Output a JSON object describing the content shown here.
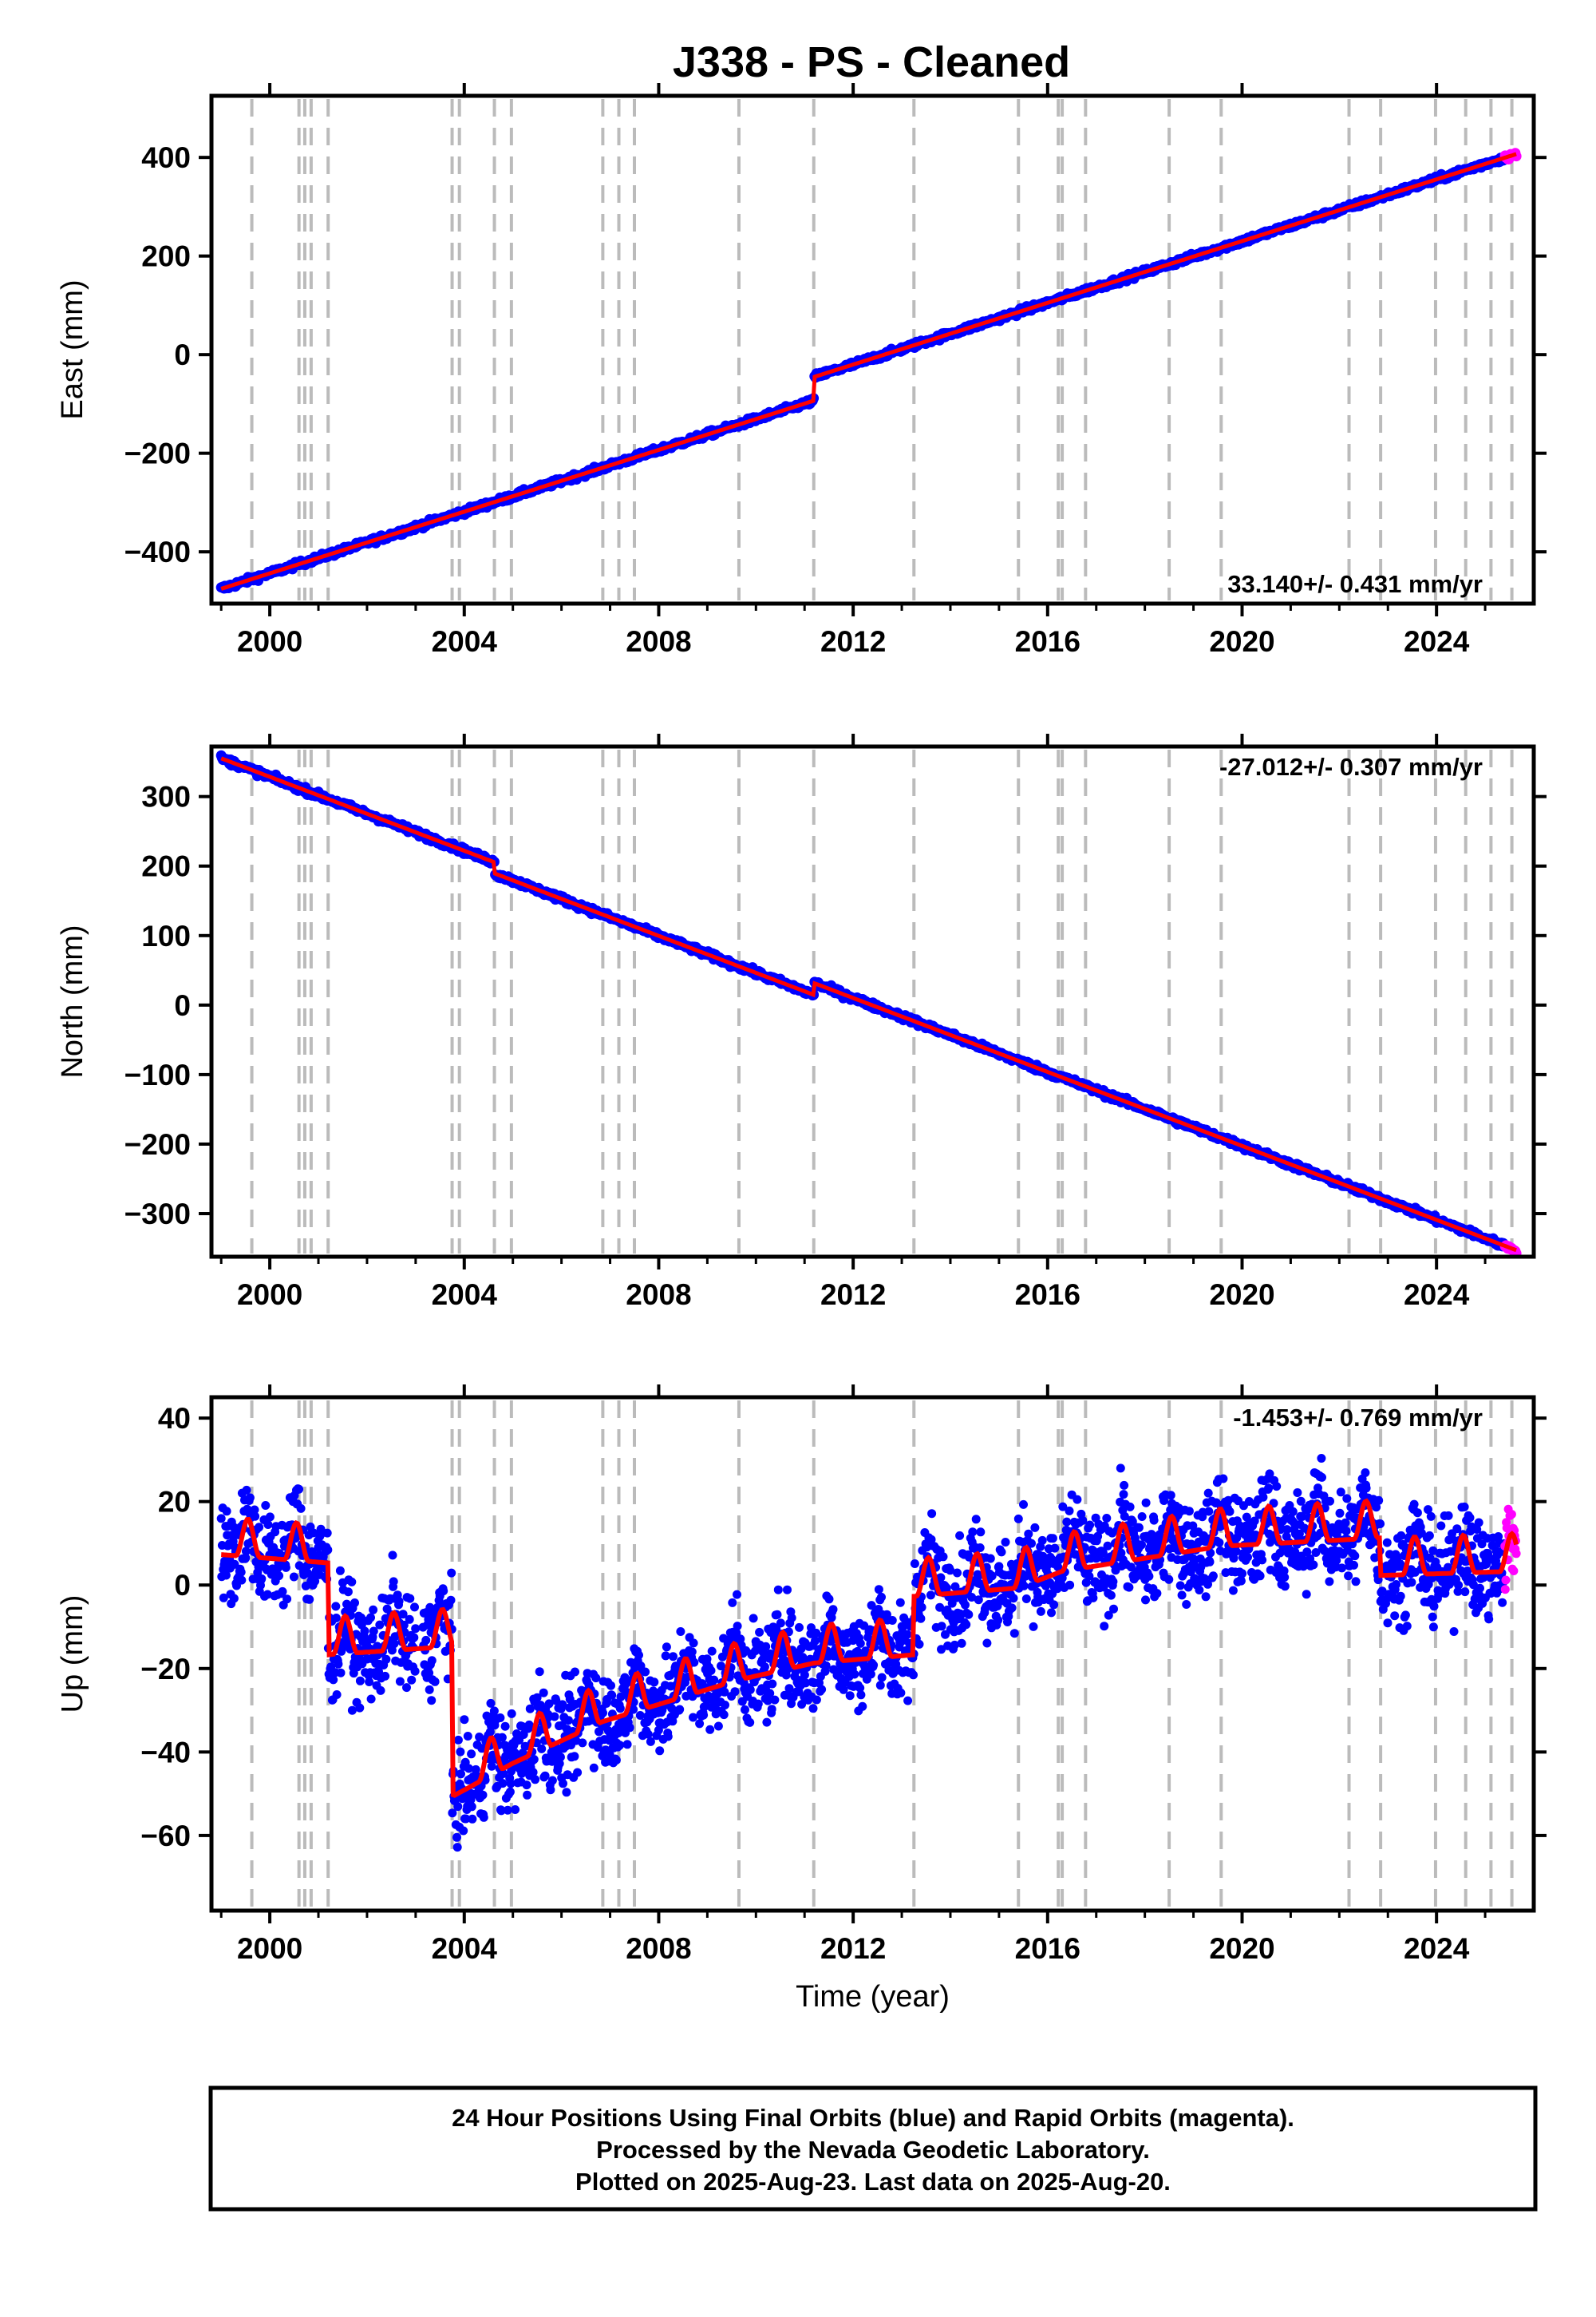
{
  "title": "J338  - PS - Cleaned",
  "footer": {
    "lines": [
      "24 Hour Positions Using Final Orbits (blue) and Rapid Orbits (magenta).",
      "Processed by the Nevada Geodetic Laboratory.",
      "Plotted on 2025-Aug-23. Last data on 2025-Aug-20."
    ]
  },
  "colors": {
    "final_orbits": "#0000ff",
    "rapid_orbits": "#ff00ff",
    "model": "#ff0000",
    "events": "#bbbbbb"
  },
  "chart_data": [
    {
      "type": "scatter",
      "ylabel": "East (mm)",
      "xlabel": "",
      "xlim": [
        1998.8,
        2026.0
      ],
      "ylim": [
        -505,
        525
      ],
      "x_ticks": [
        2000,
        2004,
        2008,
        2012,
        2016,
        2020,
        2024
      ],
      "y_ticks": [
        -400,
        -200,
        0,
        200,
        400
      ],
      "y_tick_labels": [
        "−400",
        "−200",
        "0",
        "200",
        "400"
      ],
      "rate_label": "33.140+/- 0.431 mm/yr",
      "rate_position": "bottom-right",
      "event_years": [
        1999.63,
        2000.6,
        2000.72,
        2000.85,
        2001.2,
        2003.75,
        2003.9,
        2004.62,
        2004.97,
        2006.85,
        2007.18,
        2007.5,
        2009.65,
        2011.19,
        2013.25,
        2015.4,
        2016.22,
        2016.3,
        2016.78,
        2018.5,
        2019.57,
        2022.2,
        2022.85,
        2023.98,
        2024.6,
        2025.12,
        2025.55
      ],
      "trend": {
        "x0": 1999.0,
        "y0": -475,
        "rate": 31.3,
        "noise": 4,
        "offsets": [
          {
            "year": 2011.19,
            "size": 48
          }
        ],
        "gap": null
      },
      "model_breaks": [
        {
          "year": 2011.19,
          "y": -94
        }
      ],
      "series_end": 2025.64,
      "rapid_start": 2025.4
    },
    {
      "type": "scatter",
      "ylabel": "North (mm)",
      "xlabel": "",
      "xlim": [
        1998.8,
        2026.0
      ],
      "ylim": [
        -362,
        372
      ],
      "x_ticks": [
        2000,
        2004,
        2008,
        2012,
        2016,
        2020,
        2024
      ],
      "y_ticks": [
        -300,
        -200,
        -100,
        0,
        100,
        200,
        300
      ],
      "y_tick_labels": [
        "−300",
        "−200",
        "−100",
        "0",
        "100",
        "200",
        "300"
      ],
      "rate_label": "-27.012+/- 0.307 mm/yr",
      "rate_position": "top-right",
      "event_years": [
        1999.63,
        2000.6,
        2000.72,
        2000.85,
        2001.2,
        2003.75,
        2003.9,
        2004.62,
        2004.97,
        2006.85,
        2007.18,
        2007.5,
        2009.65,
        2011.19,
        2013.25,
        2015.4,
        2016.22,
        2016.3,
        2016.78,
        2018.5,
        2019.57,
        2022.2,
        2022.85,
        2023.98,
        2024.6,
        2025.12,
        2025.55
      ],
      "trend": {
        "x0": 1999.0,
        "y0": 355,
        "rate": -26.6,
        "noise": 3,
        "offsets": [
          {
            "year": 2004.62,
            "size": -16
          },
          {
            "year": 2011.19,
            "size": 17
          }
        ],
        "gap": null
      },
      "series_end": 2025.64,
      "rapid_start": 2025.4
    },
    {
      "type": "scatter",
      "ylabel": "Up (mm)",
      "xlabel": "Time (year)",
      "xlim": [
        1998.8,
        2026.0
      ],
      "ylim": [
        -78,
        45
      ],
      "x_ticks": [
        2000,
        2004,
        2008,
        2012,
        2016,
        2020,
        2024
      ],
      "y_ticks": [
        -60,
        -40,
        -20,
        0,
        20,
        40
      ],
      "y_tick_labels": [
        "−60",
        "−40",
        "−20",
        "0",
        "20",
        "40"
      ],
      "rate_label": "-1.453+/- 0.769 mm/yr",
      "rate_position": "top-right",
      "event_years": [
        1999.63,
        2000.6,
        2000.72,
        2000.85,
        2001.2,
        2003.75,
        2003.9,
        2004.62,
        2004.97,
        2006.85,
        2007.18,
        2007.5,
        2009.65,
        2011.19,
        2013.25,
        2015.4,
        2016.22,
        2016.3,
        2016.78,
        2018.5,
        2019.57,
        2022.2,
        2022.85,
        2023.98,
        2024.6,
        2025.12,
        2025.55
      ],
      "model_knots": [
        [
          1999.0,
          10
        ],
        [
          2001.2,
          8
        ],
        [
          2001.2,
          -14
        ],
        [
          2003.75,
          -12
        ],
        [
          2003.75,
          -48
        ],
        [
          2005.0,
          -40
        ],
        [
          2006.85,
          -30
        ],
        [
          2009.65,
          -20
        ],
        [
          2011.19,
          -16
        ],
        [
          2013.25,
          -14
        ],
        [
          2013.25,
          0
        ],
        [
          2015.4,
          2
        ],
        [
          2016.3,
          6
        ],
        [
          2019.57,
          12
        ],
        [
          2022.85,
          14
        ],
        [
          2022.85,
          5
        ],
        [
          2025.64,
          6
        ]
      ],
      "seasonal_amplitude": 9,
      "scatter_noise": 8,
      "series_end": 2025.64,
      "rapid_start": 2025.4,
      "data_gap": [
        2003.0,
        2003.15
      ]
    }
  ]
}
